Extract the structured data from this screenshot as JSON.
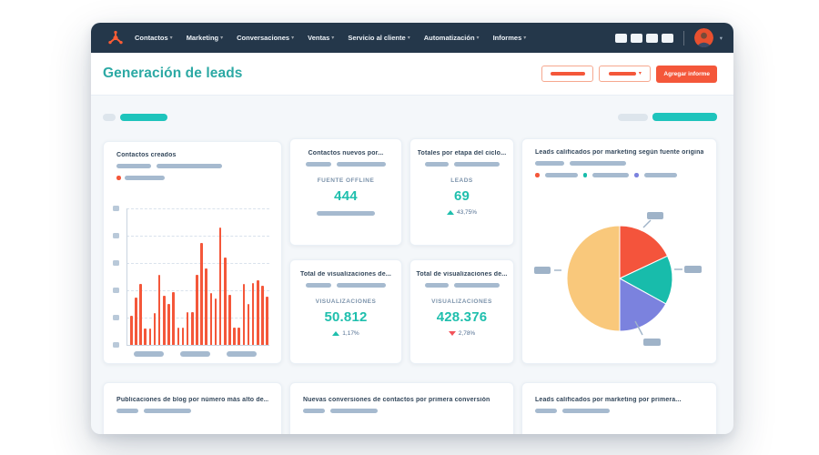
{
  "colors": {
    "accent_orange": "#f4573a",
    "accent_teal": "#1fbfad",
    "title_teal": "#2ca9a4",
    "negative_red": "#f2545b",
    "nav_background": "#24374a",
    "skeleton_gray": "#a6bacf",
    "pie_palette": [
      "#f4543c",
      "#18bcab",
      "#7b82de",
      "#f9c87b"
    ]
  },
  "icons": {
    "logo": "hubspot-sprocket",
    "nav_caret": "chevron-down",
    "delta_up": "triangle-up",
    "delta_down": "triangle-down"
  },
  "nav": {
    "items": [
      {
        "label": "Contactos"
      },
      {
        "label": "Marketing"
      },
      {
        "label": "Conversaciones"
      },
      {
        "label": "Ventas"
      },
      {
        "label": "Servicio al cliente"
      },
      {
        "label": "Automatización"
      },
      {
        "label": "Informes"
      }
    ],
    "tool_icon_count": 4
  },
  "header": {
    "title": "Generación de leads",
    "add_report_button": "Agregar informe"
  },
  "cards": {
    "bar_card": {
      "title": "Contactos creados"
    },
    "kpi": [
      {
        "title": "Contactos nuevos por...",
        "metric_label": "FUENTE OFFLINE",
        "value": "444",
        "delta": null
      },
      {
        "title": "Totales por etapa del ciclo...",
        "metric_label": "LEADS",
        "value": "69",
        "delta": {
          "direction": "up",
          "text": "43,75%"
        }
      },
      {
        "title": "Total de visualizaciones de...",
        "metric_label": "VISUALIZACIONES",
        "value": "50.812",
        "delta": {
          "direction": "up",
          "text": "1,17%"
        }
      },
      {
        "title": "Total de visualizaciones de...",
        "metric_label": "VISUALIZACIONES",
        "value": "428.376",
        "delta": {
          "direction": "down",
          "text": "2,78%"
        }
      }
    ],
    "pie_card": {
      "title": "Leads calificados por marketing según fuente original"
    },
    "bottom": [
      {
        "title": "Publicaciones de blog por número más alto de..."
      },
      {
        "title": "Nuevas conversiones de contactos por primera conversión"
      },
      {
        "title": "Leads calificados por marketing por primera..."
      }
    ]
  },
  "chart_data": [
    {
      "type": "bar",
      "title": "Contactos creados",
      "series": [
        {
          "name": "contactos",
          "color": "#f4573a",
          "values": [
            32,
            52,
            67,
            18,
            18,
            35,
            77,
            54,
            45,
            58,
            19,
            19,
            36,
            36,
            77,
            112,
            84,
            57,
            51,
            129,
            96,
            55,
            19,
            19,
            67,
            45,
            68,
            71,
            65,
            53
          ]
        }
      ],
      "value_scale": "relative px heights, max 129",
      "x_tick_labels": "redacted (3 placeholder bars)",
      "y_tick_labels": "redacted (6 placeholder squares)",
      "grid": true,
      "legend": [
        {
          "marker_color": "#f4573a",
          "label": "redacted"
        }
      ]
    },
    {
      "type": "pie",
      "title": "Leads calificados por marketing según fuente original",
      "slices": [
        {
          "label": "redacted",
          "pct": 18,
          "color": "#f4543c"
        },
        {
          "label": "redacted",
          "pct": 15,
          "color": "#18bcab"
        },
        {
          "label": "redacted",
          "pct": 17,
          "color": "#7b82de"
        },
        {
          "label": "redacted",
          "pct": 50,
          "color": "#f9c87b"
        }
      ],
      "legend": [
        {
          "marker_color": "#f4573a",
          "label": "redacted"
        },
        {
          "marker_color": "#18bcab",
          "label": "redacted"
        },
        {
          "marker_color": "#7b82de",
          "label": "redacted"
        }
      ],
      "callout_labels": "redacted (4 placeholder tags with leader lines)"
    }
  ]
}
